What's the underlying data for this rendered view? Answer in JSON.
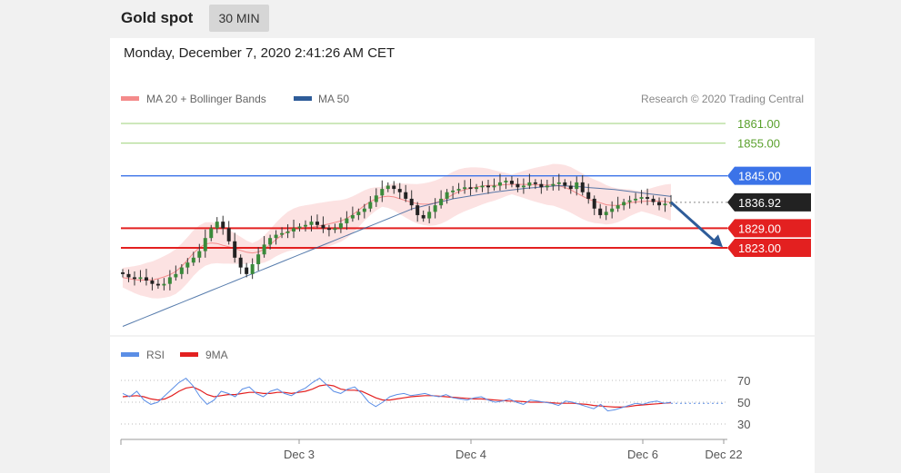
{
  "header": {
    "instrument": "Gold spot",
    "timeframe": "30 MIN"
  },
  "timestamp": "Monday, December 7, 2020 2:41:26 AM CET",
  "credit": "Research © 2020 Trading Central",
  "colors": {
    "ma20_band": "#f48b8b",
    "ma50": "#2e5c99",
    "support": "#e32020",
    "resistance": "#3b73e8",
    "target": "#7bc34b",
    "price": "#222222",
    "rsi": "#5b8ee6",
    "rsi_ma": "#e32020",
    "arrow": "#2e5c99"
  },
  "chart_data": [
    {
      "type": "candlestick",
      "legend": [
        {
          "label": "MA 20 + Bollinger Bands",
          "color": "#f48b8b"
        },
        {
          "label": "MA 50",
          "color": "#2e5c99"
        }
      ],
      "x_ticks": [
        "Dec 3",
        "Dec 4",
        "Dec 6",
        "Dec 22"
      ],
      "ylim": [
        1798,
        1867
      ],
      "levels": [
        {
          "label": "1861.00",
          "value": 1861.0,
          "kind": "target"
        },
        {
          "label": "1855.00",
          "value": 1855.0,
          "kind": "target"
        },
        {
          "label": "1845.00",
          "value": 1845.0,
          "kind": "resistance"
        },
        {
          "label": "1836.92",
          "value": 1836.92,
          "kind": "price"
        },
        {
          "label": "1829.00",
          "value": 1829.0,
          "kind": "support"
        },
        {
          "label": "1823.00",
          "value": 1823.0,
          "kind": "support"
        }
      ],
      "close": [
        1815,
        1814,
        1813.5,
        1814,
        1813,
        1812,
        1811.5,
        1812,
        1814,
        1815,
        1817,
        1818.5,
        1820,
        1822,
        1826,
        1829,
        1831,
        1829,
        1825,
        1820,
        1817,
        1815,
        1818,
        1821,
        1824,
        1826,
        1827,
        1827.5,
        1828,
        1829,
        1829.5,
        1830,
        1831,
        1830,
        1829,
        1828.5,
        1829,
        1830.5,
        1832,
        1833,
        1834,
        1835,
        1837,
        1839,
        1841,
        1842,
        1841,
        1840,
        1838,
        1836,
        1833,
        1832,
        1834,
        1836,
        1838,
        1840,
        1840.5,
        1841,
        1841.5,
        1841,
        1841.5,
        1842,
        1841.5,
        1842,
        1843,
        1843.5,
        1842.5,
        1841.5,
        1842,
        1843,
        1842.5,
        1841.5,
        1842,
        1842.5,
        1843,
        1842,
        1841,
        1843,
        1840,
        1838,
        1835,
        1833,
        1834,
        1835,
        1836,
        1837,
        1837.5,
        1838,
        1838.5,
        1838,
        1837,
        1836,
        1836.5,
        1836.92
      ],
      "ma50": [
        1799,
        1800,
        1801,
        1802,
        1803,
        1804,
        1805,
        1806,
        1807,
        1808,
        1809,
        1810,
        1811,
        1812,
        1813,
        1814,
        1815,
        1816,
        1817,
        1818,
        1819,
        1820,
        1821,
        1822,
        1823,
        1824,
        1825,
        1826,
        1827,
        1828,
        1829,
        1830,
        1831,
        1832,
        1833,
        1834,
        1835,
        1835.6,
        1836.2,
        1836.8,
        1837.4,
        1838,
        1838.4,
        1838.8,
        1839.2,
        1839.6,
        1840,
        1840.3,
        1840.6,
        1840.9,
        1841.2,
        1841.4,
        1841.6,
        1841.8,
        1842,
        1841.9,
        1841.8,
        1841.6,
        1841.4,
        1841.2,
        1841,
        1840.8,
        1840.5,
        1840.2,
        1839.9,
        1839.6,
        1839.3,
        1839,
        1838.7
      ],
      "rsi": {
        "legend": [
          {
            "label": "RSI",
            "color": "#5b8ee6"
          },
          {
            "label": "9MA",
            "color": "#e32020"
          }
        ],
        "ticks": [
          "70",
          "50",
          "30"
        ],
        "ylim": [
          20,
          80
        ],
        "rsi": [
          58,
          55,
          60,
          52,
          48,
          50,
          56,
          62,
          68,
          72,
          65,
          55,
          48,
          52,
          60,
          58,
          55,
          62,
          64,
          58,
          55,
          60,
          62,
          58,
          56,
          60,
          63,
          68,
          72,
          66,
          60,
          58,
          62,
          64,
          58,
          50,
          46,
          50,
          55,
          57,
          58,
          56,
          57,
          58,
          56,
          55,
          57,
          54,
          53,
          52,
          54,
          55,
          52,
          50,
          51,
          53,
          50,
          48,
          52,
          51,
          50,
          49,
          47,
          51,
          50,
          48,
          46,
          44,
          48,
          42,
          43,
          45,
          47,
          49,
          48,
          50,
          51,
          49,
          50
        ],
        "ma": [
          55,
          55.5,
          56,
          55,
          53,
          52,
          53,
          56,
          60,
          63,
          64,
          61,
          57,
          55,
          56,
          57,
          57,
          58,
          59,
          59,
          58,
          58,
          59,
          59,
          58,
          59,
          60,
          62,
          65,
          66,
          65,
          62,
          61,
          61,
          60,
          57,
          54,
          52,
          52,
          53,
          54,
          55,
          55.5,
          56,
          56,
          55.5,
          55,
          54.5,
          54,
          53.5,
          53,
          53,
          52.5,
          52,
          51.5,
          51,
          51,
          50.5,
          50,
          50,
          50,
          49.5,
          49,
          49,
          49,
          48.5,
          48,
          47,
          46.5,
          46,
          45.5,
          45.5,
          46,
          47,
          47.5,
          48,
          48.5,
          49,
          49.5
        ]
      }
    }
  ]
}
